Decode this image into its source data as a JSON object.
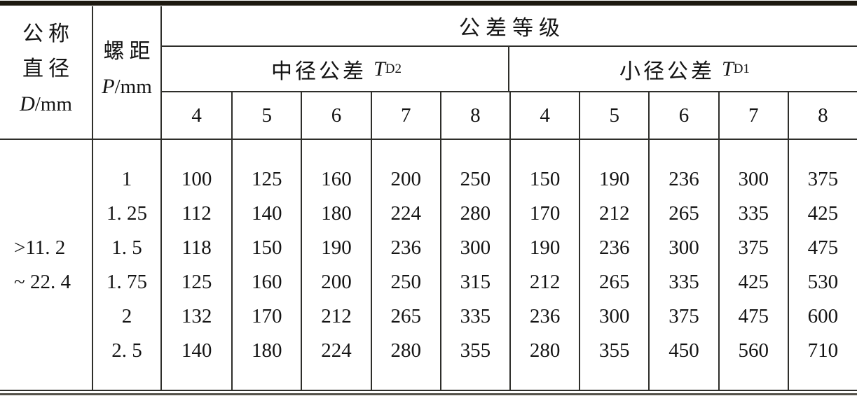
{
  "page": {
    "background": "#ffffff",
    "text_color": "#141414",
    "border_color": "#2e2e2a",
    "top_rule_color": "#1d1910"
  },
  "table": {
    "header": {
      "nominal_diameter": {
        "line1": "公称",
        "line2": "直径",
        "symbol": "D",
        "unit": "/mm"
      },
      "pitch": {
        "line1": "螺距",
        "symbol": "P",
        "unit": "/mm"
      },
      "tolerance_grade_title": "公差等级",
      "pitch_diameter_tolerance": {
        "label": "中径公差",
        "symbol": "T",
        "subscript": "D2"
      },
      "minor_diameter_tolerance": {
        "label": "小径公差",
        "symbol": "T",
        "subscript": "D1"
      },
      "grades": [
        "4",
        "5",
        "6",
        "7",
        "8",
        "4",
        "5",
        "6",
        "7",
        "8"
      ]
    },
    "body": {
      "diameter_range": {
        "line1": ">11. 2",
        "line2": "~ 22. 4"
      },
      "rows": [
        {
          "pitch": "1",
          "values": [
            "100",
            "125",
            "160",
            "200",
            "250",
            "150",
            "190",
            "236",
            "300",
            "375"
          ]
        },
        {
          "pitch": "1. 25",
          "values": [
            "112",
            "140",
            "180",
            "224",
            "280",
            "170",
            "212",
            "265",
            "335",
            "425"
          ]
        },
        {
          "pitch": "1. 5",
          "values": [
            "118",
            "150",
            "190",
            "236",
            "300",
            "190",
            "236",
            "300",
            "375",
            "475"
          ]
        },
        {
          "pitch": "1. 75",
          "values": [
            "125",
            "160",
            "200",
            "250",
            "315",
            "212",
            "265",
            "335",
            "425",
            "530"
          ]
        },
        {
          "pitch": "2",
          "values": [
            "132",
            "170",
            "212",
            "265",
            "335",
            "236",
            "300",
            "375",
            "475",
            "600"
          ]
        },
        {
          "pitch": "2. 5",
          "values": [
            "140",
            "180",
            "224",
            "280",
            "355",
            "280",
            "355",
            "450",
            "560",
            "710"
          ]
        }
      ]
    }
  }
}
